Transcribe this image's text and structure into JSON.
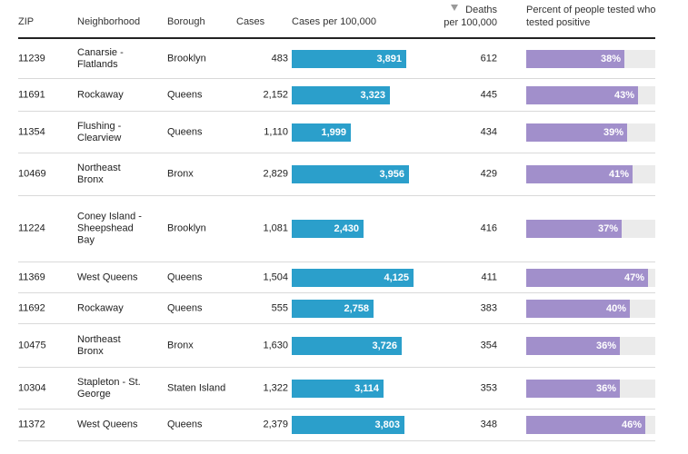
{
  "chart_data": {
    "type": "table",
    "columns": {
      "zip": "ZIP",
      "neighborhood": "Neighborhood",
      "borough": "Borough",
      "cases": "Cases",
      "cases_per_100k": "Cases per 100,000",
      "deaths_line1": "Deaths",
      "deaths_line2": "per 100,000",
      "pct_line1": "Percent of people tested who",
      "pct_line2": "tested positive"
    },
    "sorted_by": "deaths_per_100k",
    "sort_direction": "descending",
    "cases_per_100k_max": 4500,
    "colors": {
      "cases_bar": "#2b9fcb",
      "pct_bar": "#a18fcb",
      "pct_track": "#ebebeb"
    },
    "rows": [
      {
        "zip": "11239",
        "neighborhood": "Canarsie - Flatlands",
        "borough": "Brooklyn",
        "cases": "483",
        "cases_per_100k": 3891,
        "cases_per_100k_label": "3,891",
        "deaths_per_100k": "612",
        "pct_positive": 38,
        "pct_label": "38%"
      },
      {
        "zip": "11691",
        "neighborhood": "Rockaway",
        "borough": "Queens",
        "cases": "2,152",
        "cases_per_100k": 3323,
        "cases_per_100k_label": "3,323",
        "deaths_per_100k": "445",
        "pct_positive": 43,
        "pct_label": "43%"
      },
      {
        "zip": "11354",
        "neighborhood": "Flushing - Clearview",
        "borough": "Queens",
        "cases": "1,110",
        "cases_per_100k": 1999,
        "cases_per_100k_label": "1,999",
        "deaths_per_100k": "434",
        "pct_positive": 39,
        "pct_label": "39%"
      },
      {
        "zip": "10469",
        "neighborhood": "Northeast Bronx",
        "borough": "Bronx",
        "cases": "2,829",
        "cases_per_100k": 3956,
        "cases_per_100k_label": "3,956",
        "deaths_per_100k": "429",
        "pct_positive": 41,
        "pct_label": "41%"
      },
      {
        "zip": "11224",
        "neighborhood": "Coney Island - Sheepshead Bay",
        "borough": "Brooklyn",
        "cases": "1,081",
        "cases_per_100k": 2430,
        "cases_per_100k_label": "2,430",
        "deaths_per_100k": "416",
        "pct_positive": 37,
        "pct_label": "37%"
      },
      {
        "zip": "11369",
        "neighborhood": "West Queens",
        "borough": "Queens",
        "cases": "1,504",
        "cases_per_100k": 4125,
        "cases_per_100k_label": "4,125",
        "deaths_per_100k": "411",
        "pct_positive": 47,
        "pct_label": "47%"
      },
      {
        "zip": "11692",
        "neighborhood": "Rockaway",
        "borough": "Queens",
        "cases": "555",
        "cases_per_100k": 2758,
        "cases_per_100k_label": "2,758",
        "deaths_per_100k": "383",
        "pct_positive": 40,
        "pct_label": "40%"
      },
      {
        "zip": "10475",
        "neighborhood": "Northeast Bronx",
        "borough": "Bronx",
        "cases": "1,630",
        "cases_per_100k": 3726,
        "cases_per_100k_label": "3,726",
        "deaths_per_100k": "354",
        "pct_positive": 36,
        "pct_label": "36%"
      },
      {
        "zip": "10304",
        "neighborhood": "Stapleton - St. George",
        "borough": "Staten Island",
        "cases": "1,322",
        "cases_per_100k": 3114,
        "cases_per_100k_label": "3,114",
        "deaths_per_100k": "353",
        "pct_positive": 36,
        "pct_label": "36%"
      },
      {
        "zip": "11372",
        "neighborhood": "West Queens",
        "borough": "Queens",
        "cases": "2,379",
        "cases_per_100k": 3803,
        "cases_per_100k_label": "3,803",
        "deaths_per_100k": "348",
        "pct_positive": 46,
        "pct_label": "46%"
      }
    ]
  }
}
